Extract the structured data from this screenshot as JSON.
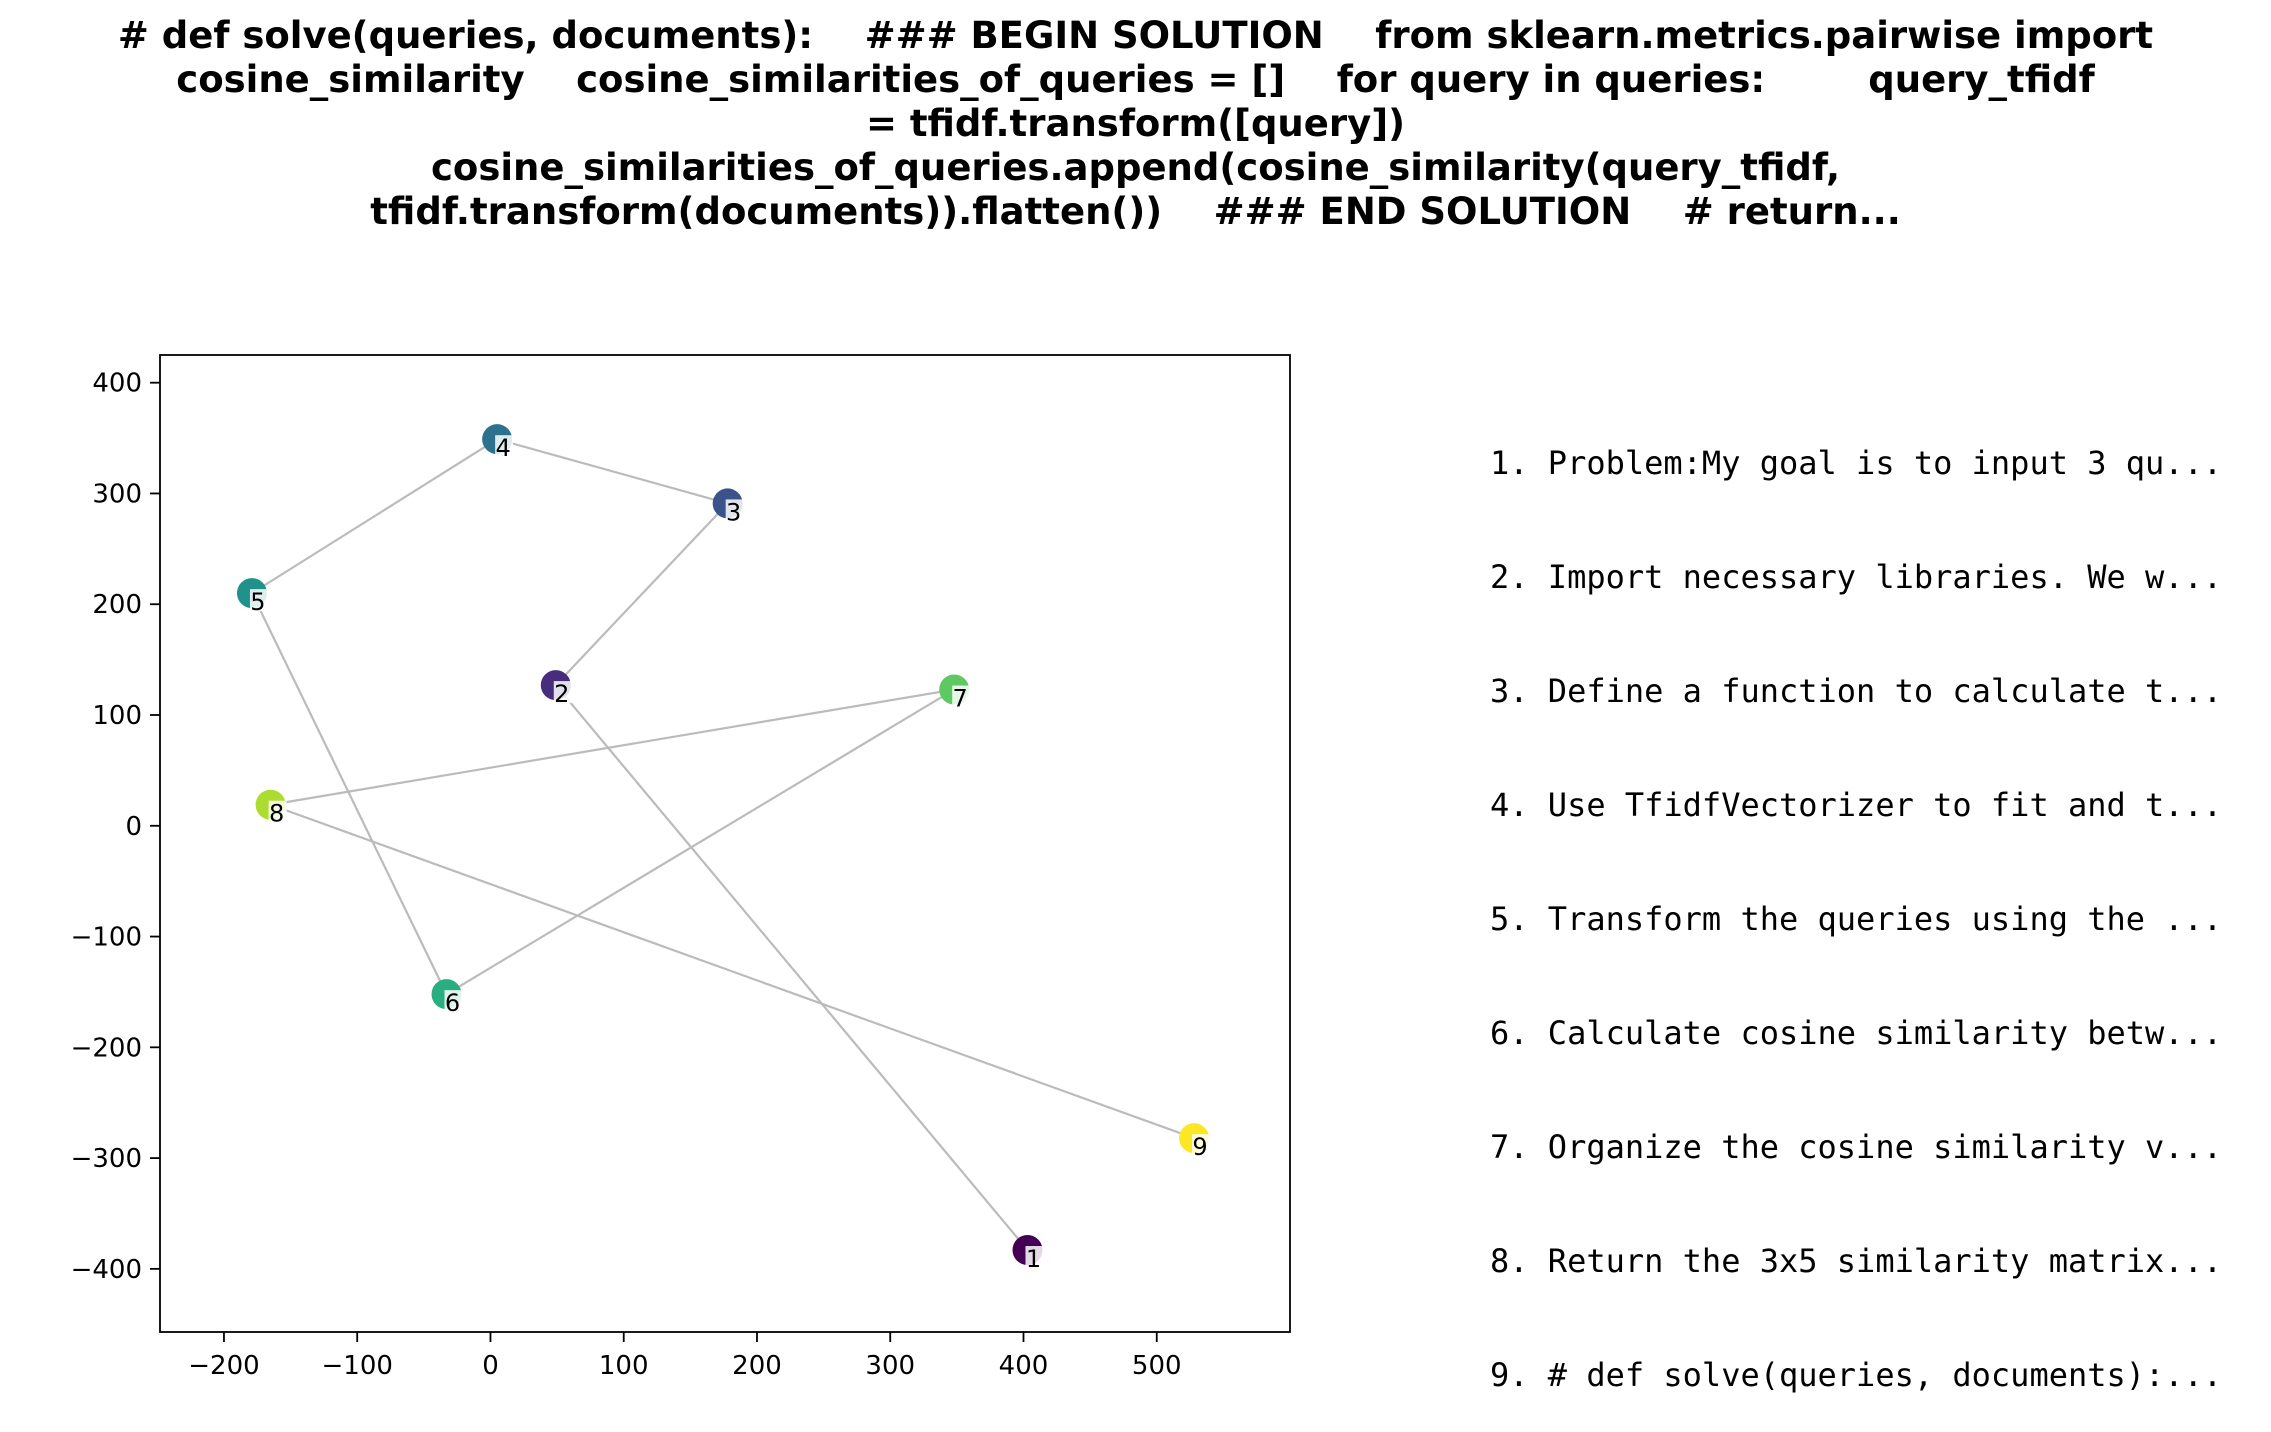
{
  "chart_data": {
    "type": "scatter",
    "title_lines": [
      "# def solve(queries, documents):    ### BEGIN SOLUTION    from sklearn.metrics.pairwise import",
      "cosine_similarity    cosine_similarities_of_queries = []    for query in queries:        query_tfidf",
      "= tfidf.transform([query])",
      "cosine_similarities_of_queries.append(cosine_similarity(query_tfidf,",
      "tfidf.transform(documents)).flatten())    ### END SOLUTION    # return..."
    ],
    "xlim": [
      -248,
      600
    ],
    "ylim": [
      -457,
      425
    ],
    "xticks": [
      -200,
      -100,
      0,
      100,
      200,
      300,
      400,
      500
    ],
    "yticks": [
      -400,
      -300,
      -200,
      -100,
      0,
      100,
      200,
      300,
      400
    ],
    "xtick_labels": [
      "−200",
      "−100",
      "0",
      "100",
      "200",
      "300",
      "400",
      "500"
    ],
    "ytick_labels": [
      "−400",
      "−300",
      "−200",
      "−100",
      "0",
      "100",
      "200",
      "300",
      "400"
    ],
    "grid": false,
    "colormap": "viridis",
    "line_color": "#bbbbbb",
    "points": [
      {
        "label": "1",
        "x": 403,
        "y": -383,
        "color": "#440154"
      },
      {
        "label": "2",
        "x": 49,
        "y": 127,
        "color": "#472d7b"
      },
      {
        "label": "3",
        "x": 178,
        "y": 291,
        "color": "#3b528b"
      },
      {
        "label": "4",
        "x": 5,
        "y": 349,
        "color": "#2c728e"
      },
      {
        "label": "5",
        "x": -179,
        "y": 210,
        "color": "#21918c"
      },
      {
        "label": "6",
        "x": -33,
        "y": -152,
        "color": "#28ae80"
      },
      {
        "label": "7",
        "x": 348,
        "y": 123,
        "color": "#5ec962"
      },
      {
        "label": "8",
        "x": -165,
        "y": 19,
        "color": "#addc30"
      },
      {
        "label": "9",
        "x": 528,
        "y": -282,
        "color": "#fde725"
      }
    ],
    "steps": [
      "1. Problem:My goal is to input 3 qu...",
      "2. Import necessary libraries. We w...",
      "3. Define a function to calculate t...",
      "4. Use TfidfVectorizer to fit and t...",
      "5. Transform the queries using the ...",
      "6. Calculate cosine similarity betw...",
      "7. Organize the cosine similarity v...",
      "8. Return the 3x5 similarity matrix...",
      "9. # def solve(queries, documents):..."
    ]
  }
}
